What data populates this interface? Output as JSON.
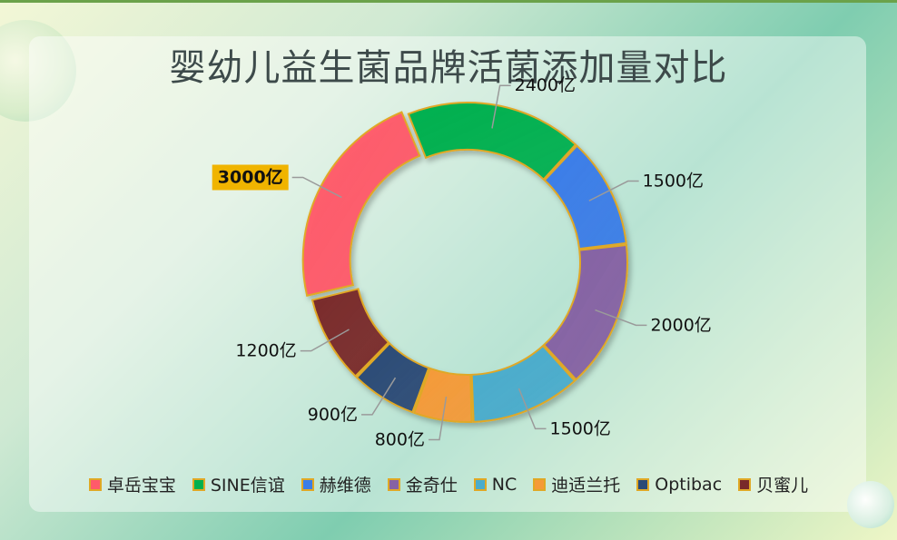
{
  "chart_data": {
    "type": "pie",
    "style": "donut",
    "title": "婴幼儿益生菌品牌活菌添加量对比",
    "unit": "亿",
    "categories": [
      "卓岳宝宝",
      "SINE信谊",
      "赫维德",
      "金奇仕",
      "NC",
      "迪适兰托",
      "Optibac",
      "贝蜜儿"
    ],
    "values": [
      3000,
      2400,
      1500,
      2000,
      1500,
      800,
      900,
      1200
    ],
    "labels": [
      "3000亿",
      "2400亿",
      "1500亿",
      "2000亿",
      "1500亿",
      "800亿",
      "900亿",
      "1200亿"
    ],
    "colors": [
      "#ff5a6a",
      "#00b04f",
      "#3b7de8",
      "#8662a4",
      "#4aaccc",
      "#f59a38",
      "#2b4a76",
      "#7a2a2a"
    ],
    "highlight_index": 0,
    "highlight_color": "#f0b400",
    "border_color": "#e0a825",
    "legend_position": "bottom"
  }
}
